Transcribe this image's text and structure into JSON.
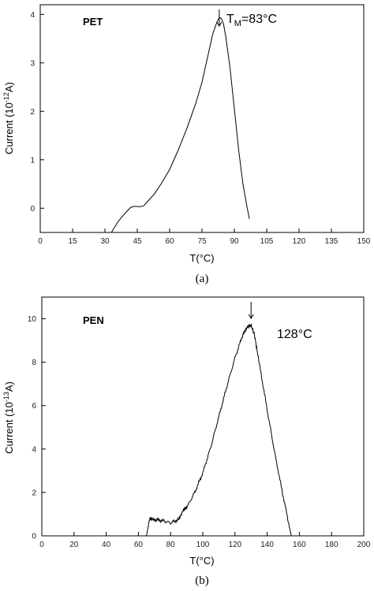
{
  "chart_data": [
    {
      "type": "line",
      "panel_tag": "PET",
      "caption": "(a)",
      "xlabel": "T(°C)",
      "ylabel_main": "Current (10",
      "ylabel_exp": "-12",
      "ylabel_unit": "A)",
      "xlim": [
        0,
        150
      ],
      "ylim": [
        -0.5,
        4.2
      ],
      "xticks": [
        0,
        15,
        30,
        45,
        60,
        75,
        90,
        105,
        120,
        135,
        150
      ],
      "yticks": [
        0,
        1,
        2,
        3,
        4
      ],
      "annotation_prefix": "T",
      "annotation_sub": "M",
      "annotation_suffix": "=83°C",
      "arrow_x": 83,
      "series": [
        {
          "x": [
            33,
            36,
            39,
            42,
            44,
            46,
            48,
            50,
            53,
            56,
            60,
            64,
            68,
            72,
            75,
            78,
            80,
            82,
            83,
            84,
            85,
            86,
            88,
            90,
            92,
            94,
            96,
            97
          ],
          "y": [
            -0.5,
            -0.28,
            -0.12,
            0.02,
            0.04,
            0.03,
            0.05,
            0.15,
            0.3,
            0.5,
            0.8,
            1.2,
            1.65,
            2.15,
            2.6,
            3.2,
            3.6,
            3.85,
            3.93,
            3.92,
            3.8,
            3.55,
            2.9,
            2.05,
            1.2,
            0.5,
            0.0,
            -0.22
          ]
        }
      ]
    },
    {
      "type": "line",
      "panel_tag": "PEN",
      "caption": "(b)",
      "xlabel": "T(°C)",
      "ylabel_main": "Current (10",
      "ylabel_exp": "-13",
      "ylabel_unit": "A)",
      "xlim": [
        0,
        200
      ],
      "ylim": [
        0,
        11
      ],
      "xticks": [
        0,
        20,
        40,
        60,
        80,
        100,
        120,
        140,
        160,
        180,
        200
      ],
      "yticks": [
        0,
        2,
        4,
        6,
        8,
        10
      ],
      "annotation": "128°C",
      "arrow_x": 130,
      "series": [
        {
          "x": [
            65,
            67,
            70,
            75,
            80,
            85,
            88,
            90,
            95,
            100,
            105,
            110,
            115,
            120,
            125,
            128,
            130,
            132,
            135,
            140,
            145,
            150,
            155
          ],
          "y": [
            0,
            0.8,
            0.75,
            0.7,
            0.6,
            0.75,
            1.2,
            1.3,
            2.0,
            2.9,
            4.1,
            5.5,
            6.9,
            8.2,
            9.3,
            9.65,
            9.7,
            9.3,
            8.0,
            5.8,
            3.7,
            1.8,
            0
          ]
        }
      ]
    }
  ]
}
